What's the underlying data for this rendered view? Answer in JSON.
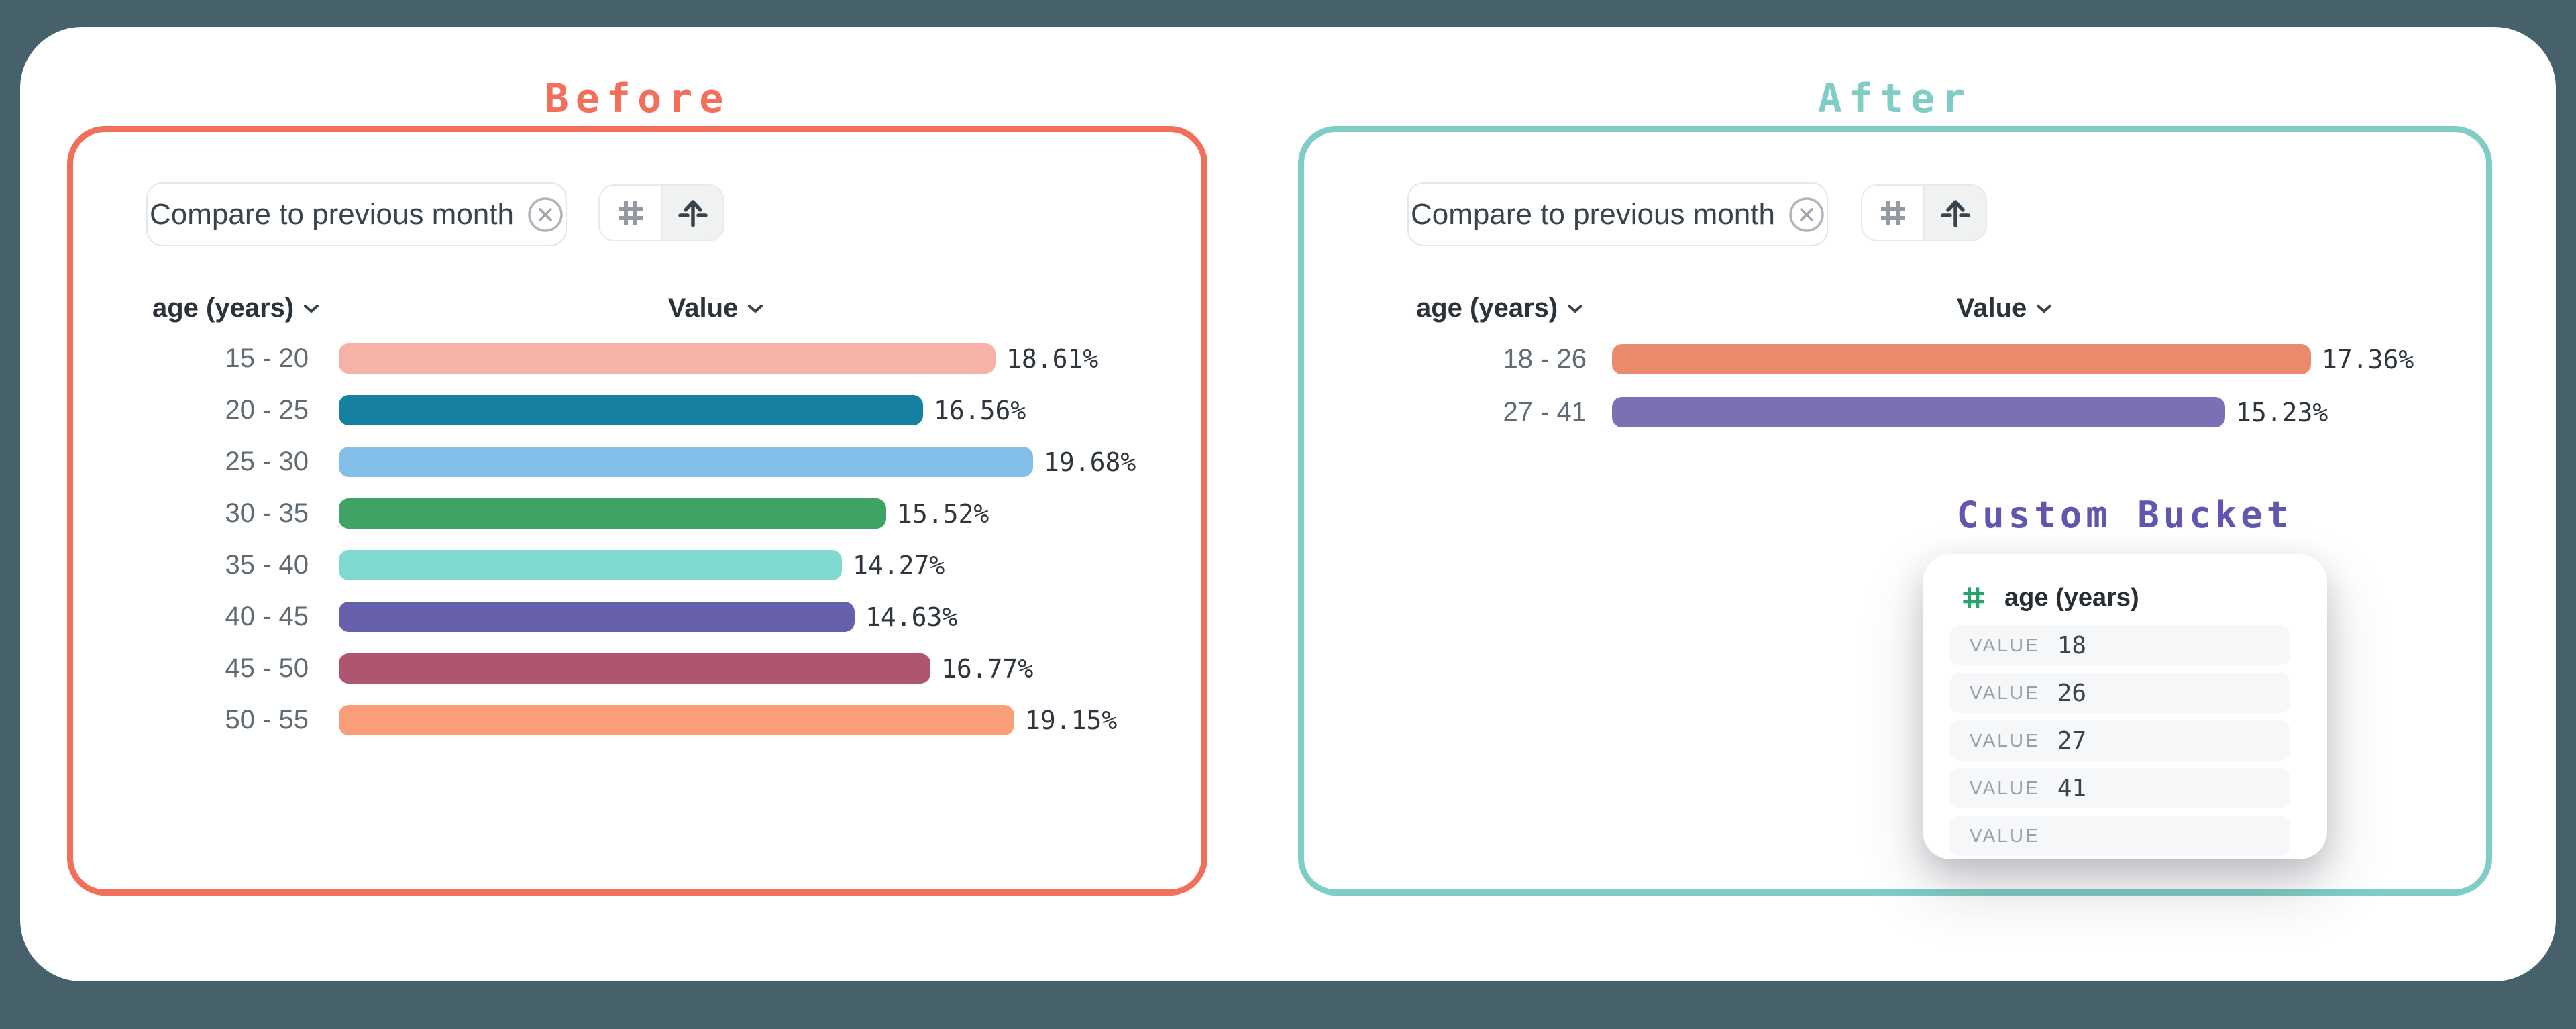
{
  "panels": [
    {
      "title": "Before",
      "accent": "#F2705B",
      "filter_chip": {
        "label": "Compare to previous month"
      },
      "toolbar": {
        "buttons": [
          {
            "icon": "hash-icon",
            "selected": false
          },
          {
            "icon": "distribute-arrow-icon",
            "selected": true
          }
        ]
      },
      "table": {
        "category_header": "age (years)",
        "value_header": "Value"
      }
    },
    {
      "title": "After",
      "accent": "#7FCDC4",
      "filter_chip": {
        "label": "Compare to previous month"
      },
      "toolbar": {
        "buttons": [
          {
            "icon": "hash-icon",
            "selected": false
          },
          {
            "icon": "distribute-arrow-icon",
            "selected": true
          }
        ]
      },
      "table": {
        "category_header": "age (years)",
        "value_header": "Value"
      },
      "custom_bucket": {
        "title": "Custom Bucket",
        "title_color": "#6058B0",
        "field_icon": "hash-icon",
        "field_icon_color": "#29A36D",
        "field_label": "age (years)",
        "value_label": "VALUE",
        "values": [
          "18",
          "26",
          "27",
          "41",
          ""
        ]
      }
    }
  ],
  "chart_data": [
    {
      "type": "bar",
      "orientation": "horizontal",
      "panel": "Before",
      "column_headers": [
        "age (years)",
        "Value"
      ],
      "categories": [
        "15 - 20",
        "20 - 25",
        "25 - 30",
        "30 - 35",
        "35 - 40",
        "40 - 45",
        "45 - 50",
        "50 - 55"
      ],
      "values": [
        18.61,
        16.56,
        19.68,
        15.52,
        14.27,
        14.63,
        16.77,
        19.15
      ],
      "value_labels": [
        "18.61%",
        "16.56%",
        "19.68%",
        "15.52%",
        "14.27%",
        "14.63%",
        "16.77%",
        "19.15%"
      ],
      "colors": [
        "#F5B2A6",
        "#1580A0",
        "#84BFE9",
        "#3FA366",
        "#7ED9CE",
        "#6660AC",
        "#AE5570",
        "#F99E78"
      ],
      "unit": "%"
    },
    {
      "type": "bar",
      "orientation": "horizontal",
      "panel": "After",
      "column_headers": [
        "age (years)",
        "Value"
      ],
      "categories": [
        "18 - 26",
        "27 - 41"
      ],
      "values": [
        17.36,
        15.23
      ],
      "value_labels": [
        "17.36%",
        "15.23%"
      ],
      "colors": [
        "#EA8A6C",
        "#7C70B5"
      ],
      "unit": "%"
    }
  ]
}
